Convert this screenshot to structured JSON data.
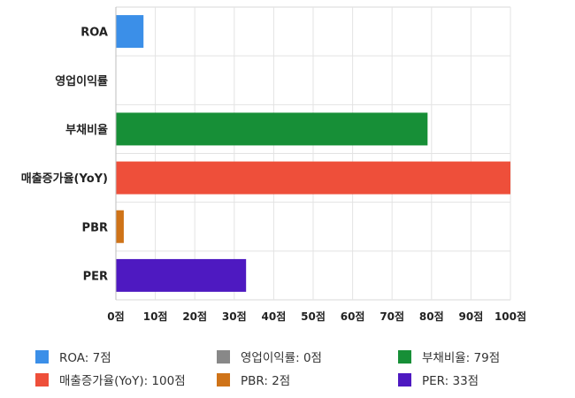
{
  "chart_data": {
    "type": "bar",
    "orientation": "horizontal",
    "categories": [
      "ROA",
      "영업이익률",
      "부채비율",
      "매출증가율(YoY)",
      "PBR",
      "PER"
    ],
    "values": [
      7,
      0,
      79,
      100,
      2,
      33
    ],
    "colors": [
      "#3b8fe8",
      "#888888",
      "#178f37",
      "#ee4f3a",
      "#cf7318",
      "#4e19c1"
    ],
    "xlim": [
      0,
      100
    ],
    "x_ticks": [
      "0점",
      "10점",
      "20점",
      "30점",
      "40점",
      "50점",
      "60점",
      "70점",
      "80점",
      "90점",
      "100점"
    ],
    "grid": true,
    "legend_position": "bottom",
    "legend": [
      {
        "label": "ROA: 7점",
        "color": "#3b8fe8"
      },
      {
        "label": "영업이익률: 0점",
        "color": "#888888"
      },
      {
        "label": "부채비율: 79점",
        "color": "#178f37"
      },
      {
        "label": "매출증가율(YoY): 100점",
        "color": "#ee4f3a"
      },
      {
        "label": "PBR: 2점",
        "color": "#cf7318"
      },
      {
        "label": "PER: 33점",
        "color": "#4e19c1"
      }
    ]
  }
}
